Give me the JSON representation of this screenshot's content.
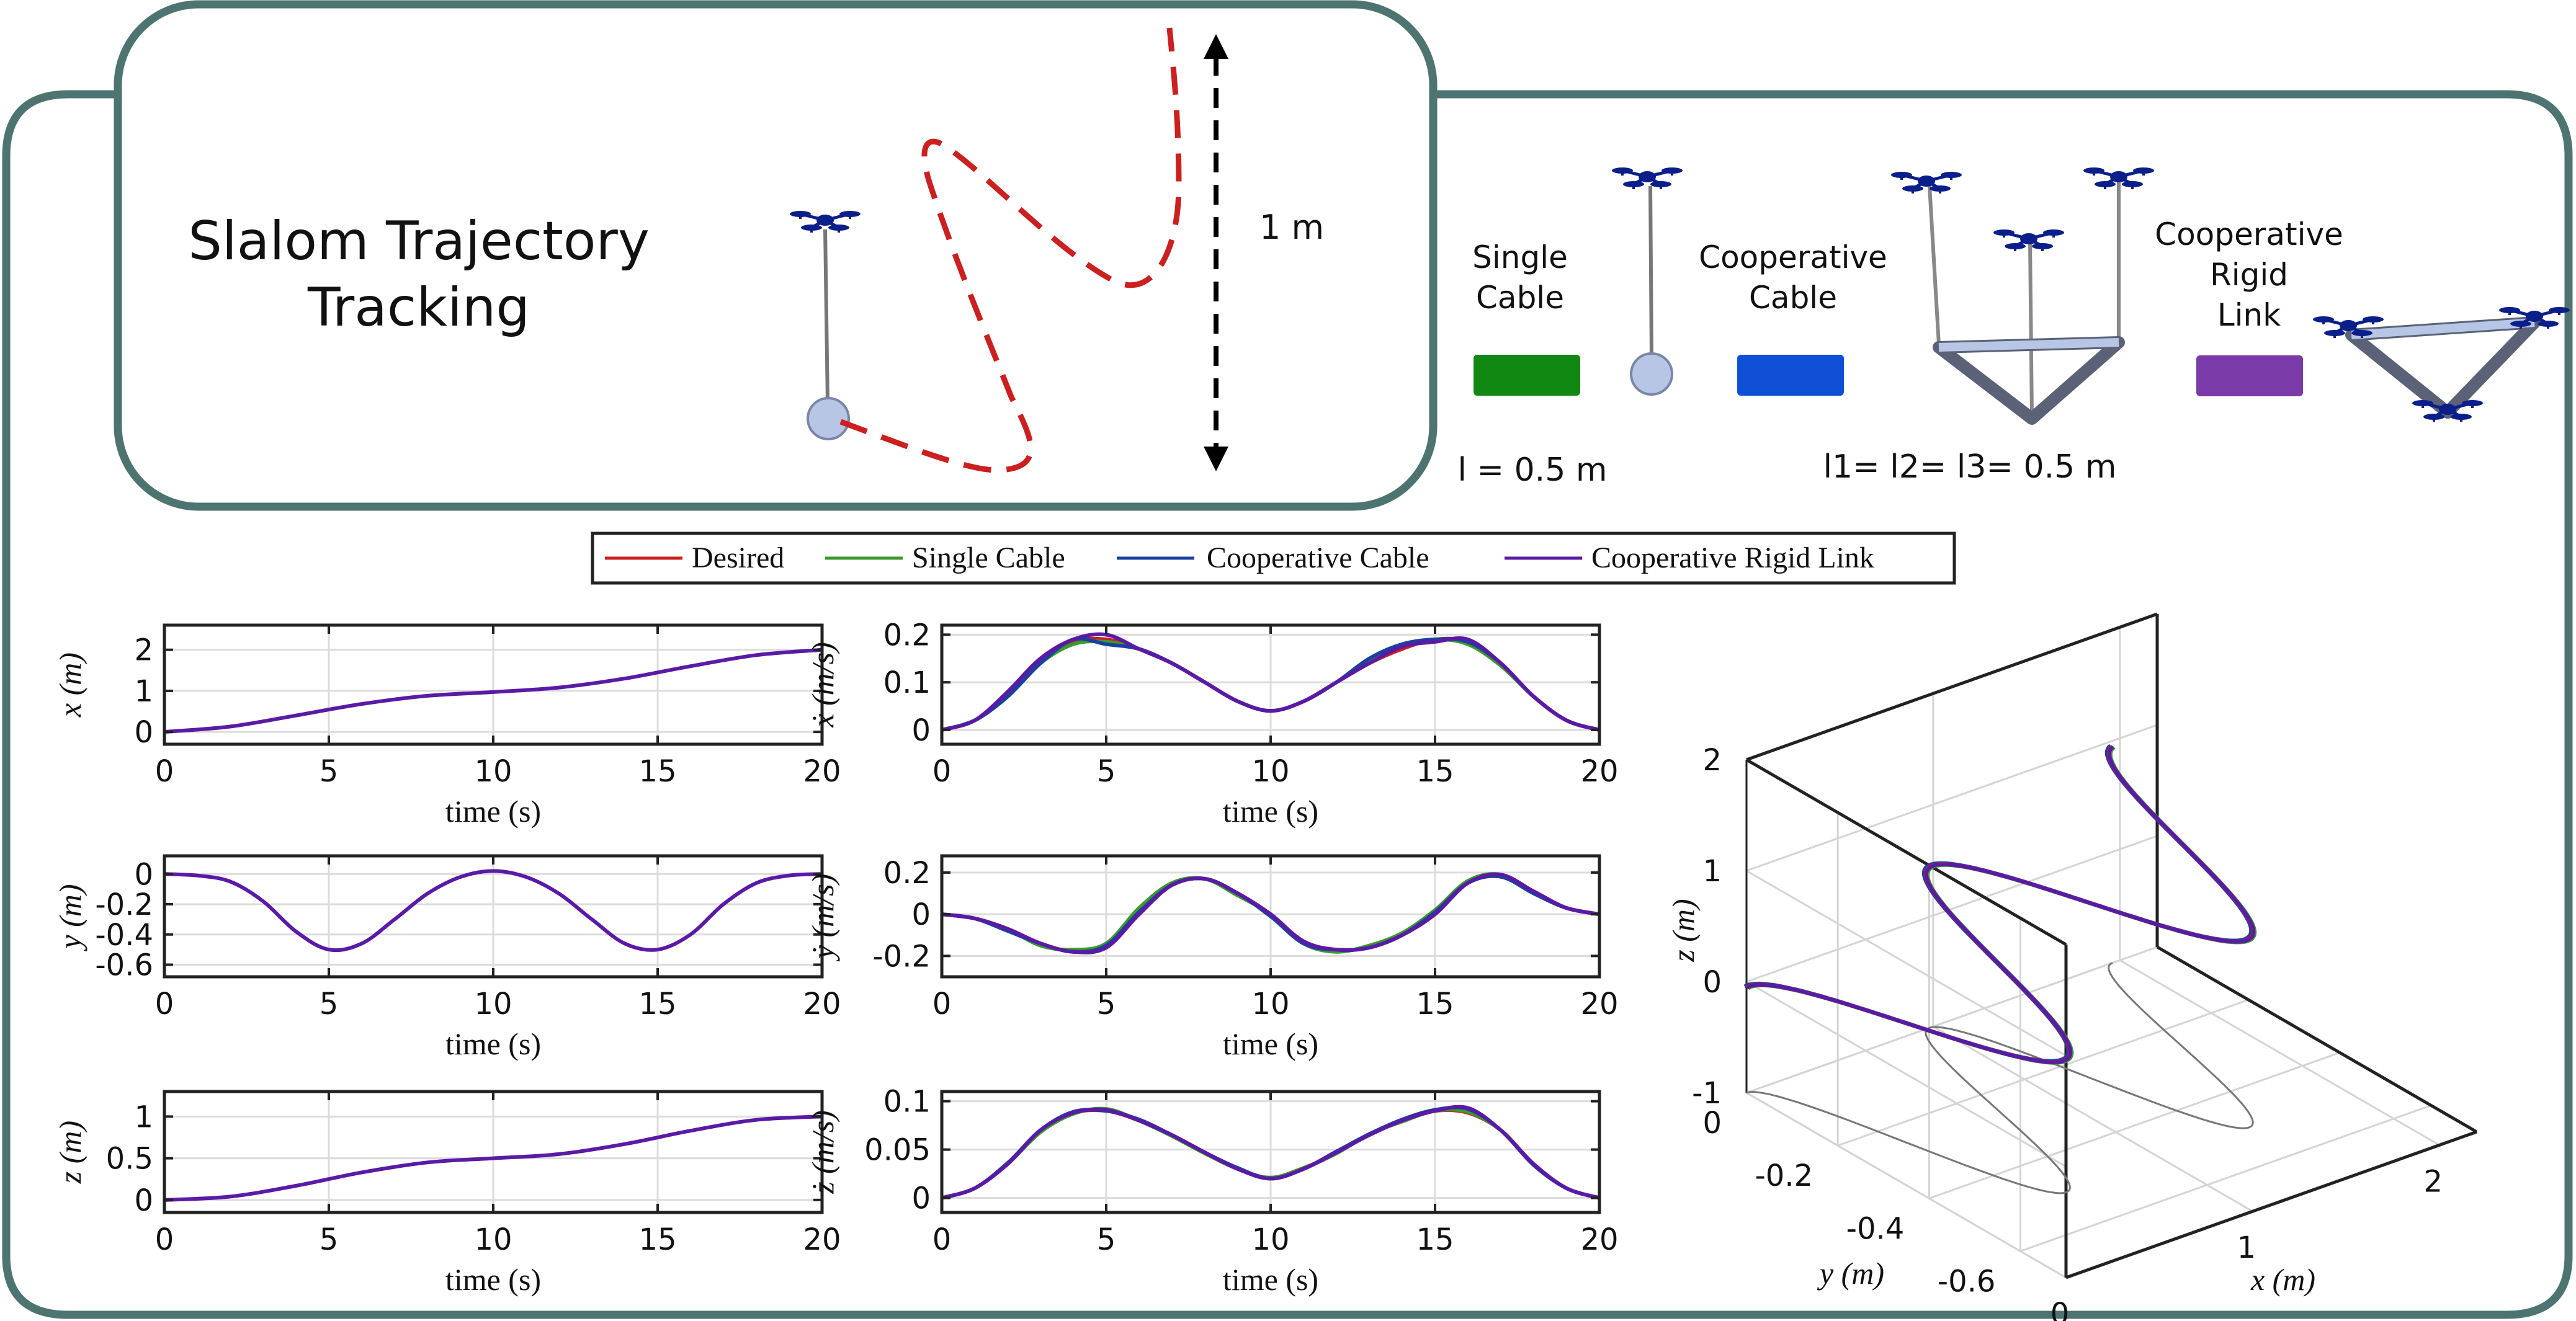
{
  "header": {
    "title_line1": "Slalom Trajectory",
    "title_line2": "Tracking",
    "scale_label": "1 m"
  },
  "configs": {
    "single_label_line1": "Single",
    "single_label_line2": "Cable",
    "coop_cable_label_line1": "Cooperative",
    "coop_cable_label_line2": "Cable",
    "rigid_label_line1": "Cooperative",
    "rigid_label_line2": "Rigid",
    "rigid_label_line3": "Link",
    "single_length": "l = 0.5 m",
    "coop_lengths": "l1= l2= l3= 0.5 m",
    "single_color": "#118811",
    "coop_cable_color": "#0e4fd6",
    "rigid_color": "#7a3aa8"
  },
  "colors": {
    "border": "#4d7471",
    "desired": "#cc1f1f",
    "single": "#3c9a2c",
    "coop_cable": "#1d3fa0",
    "rigid": "#5a1aa5",
    "drone": "#0b1f8a"
  },
  "legend": {
    "items": [
      "Desired",
      "Single Cable",
      "Cooperative Cable",
      "Cooperative Rigid Link"
    ]
  },
  "chart_data": [
    {
      "type": "line",
      "xlabel": "time (s)",
      "ylabel": "x (m)",
      "xlim": [
        0,
        20
      ],
      "ylim": [
        -0.3,
        2.6
      ],
      "xticks": [
        0,
        5,
        10,
        15,
        20
      ],
      "yticks": [
        0,
        1,
        2
      ],
      "grid": true,
      "x": [
        0,
        2,
        4,
        6,
        8,
        10,
        12,
        14,
        16,
        18,
        20
      ],
      "series": [
        {
          "name": "Cooperative Rigid Link",
          "values": [
            0,
            0.13,
            0.4,
            0.68,
            0.88,
            0.97,
            1.08,
            1.3,
            1.6,
            1.87,
            2.0
          ]
        }
      ]
    },
    {
      "type": "line",
      "xlabel": "time (s)",
      "ylabel": "ẋ (m/s)",
      "xlim": [
        0,
        20
      ],
      "ylim": [
        -0.03,
        0.22
      ],
      "xticks": [
        0,
        5,
        10,
        15,
        20
      ],
      "yticks": [
        0,
        0.1,
        0.2
      ],
      "grid": true,
      "x": [
        0,
        1,
        2,
        3,
        4,
        5,
        6,
        7,
        8,
        9,
        10,
        11,
        12,
        13,
        14,
        15,
        16,
        17,
        18,
        19,
        20
      ],
      "series": [
        {
          "name": "Desired",
          "values": [
            0,
            0.02,
            0.07,
            0.14,
            0.185,
            0.19,
            0.17,
            0.14,
            0.1,
            0.06,
            0.04,
            0.06,
            0.1,
            0.14,
            0.17,
            0.19,
            0.185,
            0.14,
            0.07,
            0.02,
            0
          ]
        },
        {
          "name": "Single Cable",
          "values": [
            0,
            0.02,
            0.07,
            0.14,
            0.18,
            0.185,
            0.17,
            0.14,
            0.1,
            0.06,
            0.04,
            0.06,
            0.1,
            0.145,
            0.175,
            0.19,
            0.18,
            0.135,
            0.07,
            0.02,
            0
          ]
        },
        {
          "name": "Cooperative Cable",
          "values": [
            0,
            0.02,
            0.07,
            0.14,
            0.19,
            0.18,
            0.17,
            0.14,
            0.1,
            0.06,
            0.04,
            0.06,
            0.1,
            0.15,
            0.18,
            0.19,
            0.185,
            0.14,
            0.07,
            0.02,
            0
          ]
        },
        {
          "name": "Cooperative Rigid Link",
          "values": [
            0,
            0.02,
            0.08,
            0.15,
            0.19,
            0.2,
            0.17,
            0.14,
            0.1,
            0.06,
            0.04,
            0.06,
            0.1,
            0.14,
            0.175,
            0.185,
            0.19,
            0.14,
            0.07,
            0.02,
            0
          ]
        }
      ]
    },
    {
      "type": "line",
      "xlabel": "time (s)",
      "ylabel": "y (m)",
      "xlim": [
        0,
        20
      ],
      "ylim": [
        -0.68,
        0.12
      ],
      "xticks": [
        0,
        5,
        10,
        15,
        20
      ],
      "yticks": [
        0,
        -0.2,
        -0.4,
        -0.6
      ],
      "grid": true,
      "x": [
        0,
        1,
        2,
        3,
        4,
        5,
        6,
        7,
        8,
        9,
        10,
        11,
        12,
        13,
        14,
        15,
        16,
        17,
        18,
        19,
        20
      ],
      "series": [
        {
          "name": "Cooperative Rigid Link",
          "values": [
            0,
            -0.01,
            -0.05,
            -0.18,
            -0.38,
            -0.5,
            -0.46,
            -0.3,
            -0.13,
            -0.02,
            0.02,
            -0.02,
            -0.13,
            -0.3,
            -0.46,
            -0.5,
            -0.4,
            -0.2,
            -0.06,
            -0.01,
            0
          ]
        }
      ]
    },
    {
      "type": "line",
      "xlabel": "time (s)",
      "ylabel": "ẏ (m/s)",
      "xlim": [
        0,
        20
      ],
      "ylim": [
        -0.3,
        0.28
      ],
      "xticks": [
        0,
        5,
        10,
        15,
        20
      ],
      "yticks": [
        -0.2,
        0,
        0.2
      ],
      "grid": true,
      "x": [
        0,
        1,
        2,
        3,
        4,
        5,
        6,
        7,
        8,
        9,
        10,
        11,
        12,
        13,
        14,
        15,
        16,
        17,
        18,
        19,
        20
      ],
      "series": [
        {
          "name": "Desired",
          "values": [
            0,
            -0.02,
            -0.07,
            -0.14,
            -0.18,
            -0.16,
            0,
            0.14,
            0.17,
            0.1,
            0,
            -0.13,
            -0.17,
            -0.16,
            -0.1,
            0,
            0.15,
            0.18,
            0.1,
            0.03,
            0
          ]
        },
        {
          "name": "Single Cable",
          "values": [
            0,
            -0.02,
            -0.07,
            -0.15,
            -0.17,
            -0.14,
            0.03,
            0.15,
            0.17,
            0.09,
            0,
            -0.14,
            -0.18,
            -0.15,
            -0.09,
            0.02,
            0.16,
            0.19,
            0.1,
            0.03,
            0
          ]
        },
        {
          "name": "Cooperative Cable",
          "values": [
            0,
            -0.02,
            -0.08,
            -0.14,
            -0.18,
            -0.15,
            0.01,
            0.14,
            0.17,
            0.1,
            -0.01,
            -0.14,
            -0.17,
            -0.16,
            -0.1,
            0.01,
            0.15,
            0.18,
            0.1,
            0.03,
            0
          ]
        },
        {
          "name": "Cooperative Rigid Link",
          "values": [
            0,
            -0.02,
            -0.07,
            -0.14,
            -0.18,
            -0.16,
            0,
            0.14,
            0.17,
            0.1,
            0,
            -0.13,
            -0.17,
            -0.16,
            -0.1,
            0,
            0.15,
            0.19,
            0.11,
            0.03,
            0
          ]
        }
      ]
    },
    {
      "type": "line",
      "xlabel": "time (s)",
      "ylabel": "z (m)",
      "xlim": [
        0,
        20
      ],
      "ylim": [
        -0.15,
        1.3
      ],
      "xticks": [
        0,
        5,
        10,
        15,
        20
      ],
      "yticks": [
        0,
        0.5,
        1
      ],
      "grid": true,
      "x": [
        0,
        2,
        4,
        6,
        8,
        10,
        12,
        14,
        16,
        18,
        20
      ],
      "series": [
        {
          "name": "Cooperative Rigid Link",
          "values": [
            0,
            0.04,
            0.17,
            0.33,
            0.45,
            0.5,
            0.55,
            0.67,
            0.83,
            0.96,
            1.0
          ]
        }
      ]
    },
    {
      "type": "line",
      "xlabel": "time (s)",
      "ylabel": "ż (m/s)",
      "xlim": [
        0,
        20
      ],
      "ylim": [
        -0.015,
        0.11
      ],
      "xticks": [
        0,
        5,
        10,
        15,
        20
      ],
      "yticks": [
        0,
        0.05,
        0.1
      ],
      "grid": true,
      "x": [
        0,
        1,
        2,
        3,
        4,
        5,
        6,
        7,
        8,
        9,
        10,
        11,
        12,
        13,
        14,
        15,
        16,
        17,
        18,
        19,
        20
      ],
      "series": [
        {
          "name": "Desired",
          "values": [
            0,
            0.01,
            0.035,
            0.07,
            0.088,
            0.09,
            0.08,
            0.065,
            0.047,
            0.03,
            0.02,
            0.03,
            0.047,
            0.065,
            0.08,
            0.09,
            0.088,
            0.07,
            0.035,
            0.01,
            0
          ]
        },
        {
          "name": "Single Cable",
          "values": [
            0,
            0.01,
            0.035,
            0.068,
            0.087,
            0.092,
            0.08,
            0.064,
            0.046,
            0.03,
            0.021,
            0.031,
            0.046,
            0.066,
            0.079,
            0.09,
            0.089,
            0.07,
            0.035,
            0.01,
            0
          ]
        },
        {
          "name": "Cooperative Cable",
          "values": [
            0,
            0.01,
            0.036,
            0.07,
            0.089,
            0.09,
            0.081,
            0.065,
            0.047,
            0.031,
            0.02,
            0.03,
            0.048,
            0.066,
            0.081,
            0.091,
            0.092,
            0.07,
            0.034,
            0.01,
            0
          ]
        },
        {
          "name": "Cooperative Rigid Link",
          "values": [
            0,
            0.01,
            0.035,
            0.07,
            0.088,
            0.091,
            0.08,
            0.065,
            0.047,
            0.03,
            0.02,
            0.03,
            0.047,
            0.065,
            0.08,
            0.09,
            0.093,
            0.07,
            0.035,
            0.01,
            0
          ]
        }
      ]
    },
    {
      "type": "line",
      "xlabel": "x (m)",
      "ylabel": "z (m)",
      "y2label": "y (m)",
      "zlim": [
        -1,
        2
      ],
      "zticks": [
        -1,
        0,
        1,
        2
      ],
      "xticks": [
        0,
        1,
        2
      ],
      "yticks": [
        0,
        -0.2,
        -0.4,
        -0.6
      ],
      "series": [
        {
          "name": "Cooperative Rigid Link",
          "x": [
            0,
            0.5,
            1,
            1.5,
            2
          ],
          "y": [
            0,
            -0.5,
            0,
            -0.5,
            0
          ],
          "z": [
            0,
            0.25,
            0.5,
            0.75,
            1
          ]
        }
      ]
    }
  ]
}
